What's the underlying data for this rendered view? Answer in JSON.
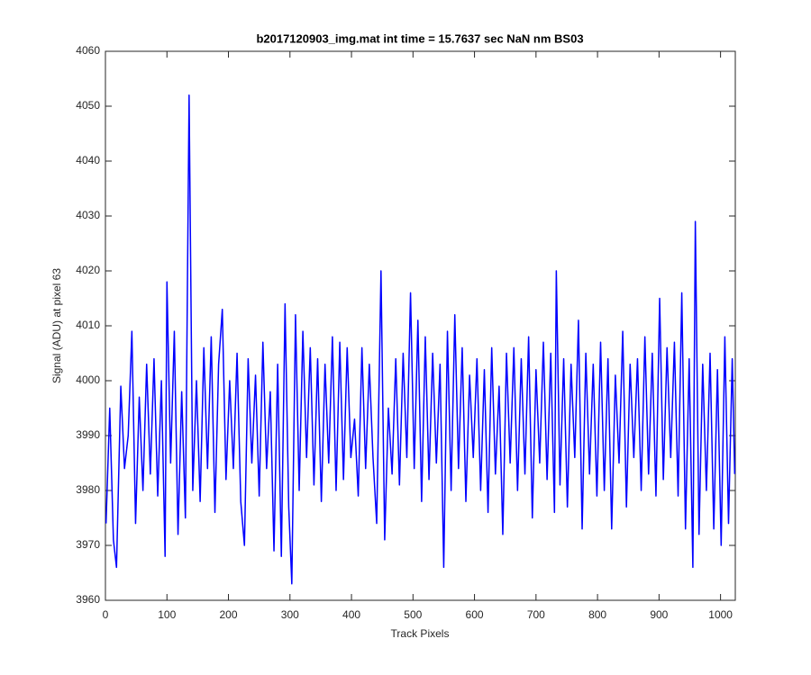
{
  "chart_data": {
    "type": "line",
    "title": "b2017120903_img.mat int time = 15.7637 sec  NaN nm BS03",
    "x_label": "Track Pixels",
    "y_label": "Signal (ADU) at pixel 63",
    "xlim": [
      0,
      1024
    ],
    "ylim": [
      3960,
      4060
    ],
    "xticks": [
      0,
      100,
      200,
      300,
      400,
      500,
      600,
      700,
      800,
      900,
      1000
    ],
    "yticks": [
      3960,
      3970,
      3980,
      3990,
      4000,
      4010,
      4020,
      4030,
      4040,
      4050,
      4060
    ],
    "grid": false,
    "series": [
      {
        "color": "#0000ff",
        "x": [
          1,
          7,
          13,
          18,
          25,
          31,
          37,
          43,
          49,
          55,
          61,
          67,
          73,
          79,
          85,
          91,
          97,
          100,
          106,
          112,
          118,
          124,
          130,
          136,
          142,
          148,
          154,
          160,
          166,
          172,
          178,
          184,
          190,
          196,
          202,
          208,
          214,
          220,
          226,
          232,
          238,
          244,
          250,
          256,
          262,
          268,
          274,
          280,
          286,
          292,
          298,
          303,
          309,
          315,
          321,
          327,
          333,
          339,
          345,
          351,
          357,
          363,
          369,
          375,
          381,
          387,
          393,
          399,
          405,
          411,
          417,
          423,
          429,
          435,
          441,
          448,
          454,
          460,
          466,
          472,
          478,
          484,
          490,
          496,
          502,
          508,
          514,
          520,
          526,
          532,
          538,
          544,
          550,
          556,
          562,
          568,
          574,
          580,
          586,
          592,
          598,
          604,
          610,
          616,
          622,
          628,
          634,
          640,
          646,
          652,
          658,
          664,
          670,
          676,
          682,
          688,
          694,
          700,
          706,
          712,
          718,
          724,
          730,
          733,
          739,
          745,
          751,
          757,
          763,
          769,
          775,
          781,
          787,
          793,
          799,
          805,
          811,
          817,
          823,
          829,
          835,
          841,
          847,
          853,
          859,
          865,
          871,
          877,
          883,
          889,
          895,
          901,
          907,
          913,
          919,
          925,
          931,
          937,
          943,
          949,
          955,
          959,
          965,
          971,
          977,
          983,
          989,
          995,
          1001,
          1007,
          1013,
          1019,
          1023
        ],
        "values": [
          3974,
          3995,
          3971,
          3966,
          3999,
          3984,
          3990,
          4009,
          3974,
          3997,
          3980,
          4003,
          3983,
          4004,
          3979,
          4000,
          3968,
          4018,
          3985,
          4009,
          3972,
          3998,
          3975,
          4052,
          3980,
          4000,
          3978,
          4006,
          3984,
          4008,
          3976,
          4003,
          4013,
          3982,
          4000,
          3984,
          4005,
          3978,
          3970,
          4004,
          3985,
          4001,
          3979,
          4007,
          3984,
          3998,
          3969,
          4003,
          3968,
          4014,
          3977,
          3963,
          4012,
          3980,
          4009,
          3986,
          4006,
          3981,
          4004,
          3978,
          4003,
          3985,
          4008,
          3980,
          4007,
          3982,
          4006,
          3986,
          3993,
          3979,
          4006,
          3984,
          4003,
          3986,
          3974,
          4020,
          3971,
          3995,
          3983,
          4004,
          3981,
          4005,
          3986,
          4016,
          3984,
          4011,
          3978,
          4008,
          3982,
          4005,
          3985,
          4003,
          3966,
          4009,
          3980,
          4012,
          3984,
          4006,
          3978,
          4001,
          3986,
          4004,
          3980,
          4002,
          3976,
          4006,
          3983,
          3999,
          3972,
          4005,
          3985,
          4006,
          3980,
          4004,
          3983,
          4008,
          3975,
          4002,
          3985,
          4007,
          3982,
          4005,
          3976,
          4020,
          3981,
          4004,
          3977,
          4003,
          3986,
          4011,
          3973,
          4005,
          3983,
          4003,
          3979,
          4007,
          3980,
          4004,
          3973,
          4001,
          3985,
          4009,
          3977,
          4003,
          3986,
          4004,
          3980,
          4008,
          3983,
          4005,
          3979,
          4015,
          3982,
          4006,
          3986,
          4007,
          3979,
          4016,
          3973,
          4004,
          3966,
          4029,
          3972,
          4003,
          3980,
          4005,
          3973,
          4002,
          3970,
          4008,
          3974,
          4004,
          3983
        ]
      }
    ]
  }
}
